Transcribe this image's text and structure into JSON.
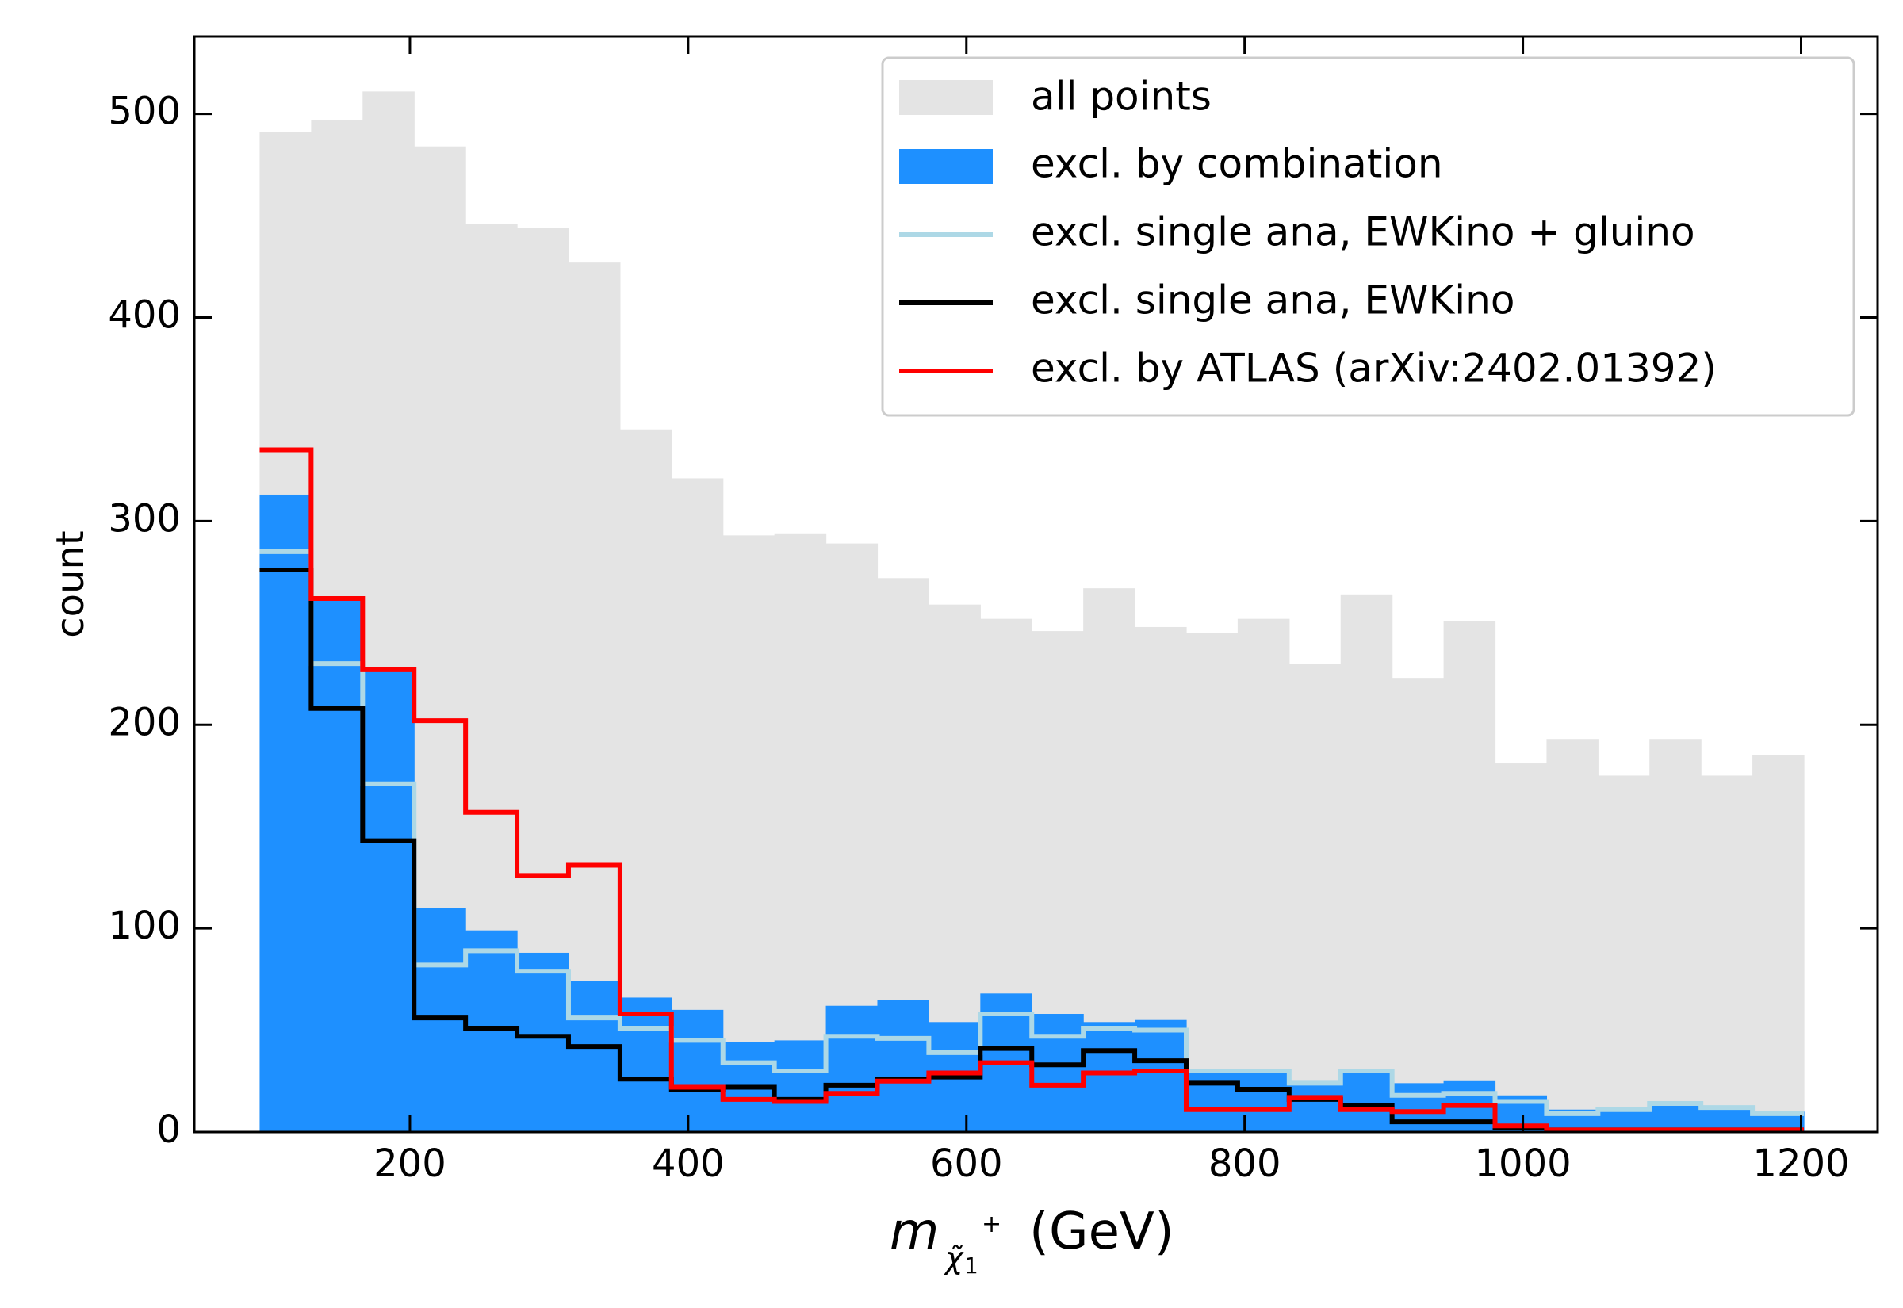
{
  "chart_data": {
    "type": "histogram",
    "title": "",
    "xlabel": {
      "symbol": "m",
      "sub_base": "χ̃",
      "sub_index": "1",
      "sup": "+",
      "unit": "(GeV)"
    },
    "ylabel": "count",
    "xlim": [
      45,
      1255
    ],
    "ylim": [
      0,
      538
    ],
    "x_ticks": [
      200,
      400,
      600,
      800,
      1000,
      1200
    ],
    "y_ticks": [
      0,
      100,
      200,
      300,
      400,
      500
    ],
    "bin_edges": [
      92,
      129,
      166,
      203,
      240,
      277,
      314,
      351,
      388,
      425,
      462,
      499,
      536,
      573,
      610,
      647,
      684,
      721,
      758,
      795,
      832,
      869,
      906,
      943,
      980,
      1017,
      1054,
      1091,
      1128,
      1165,
      1202
    ],
    "series": [
      {
        "name": "all points",
        "style": "filled",
        "color": "#e4e4e4",
        "values": [
          491,
          497,
          511,
          484,
          446,
          444,
          427,
          345,
          321,
          293,
          294,
          289,
          272,
          259,
          252,
          246,
          267,
          248,
          245,
          252,
          230,
          264,
          223,
          251,
          181,
          193,
          175,
          193,
          175,
          185
        ]
      },
      {
        "name": "excl. by combination",
        "style": "filled",
        "color": "#1e90ff",
        "values": [
          313,
          262,
          226,
          110,
          99,
          88,
          74,
          66,
          60,
          44,
          45,
          62,
          65,
          54,
          68,
          58,
          54,
          55,
          31,
          31,
          25,
          31,
          24,
          25,
          18,
          11,
          12,
          14,
          12,
          10
        ]
      },
      {
        "name": "excl. single ana, EWKino + gluino",
        "style": "step",
        "color": "#add8e6",
        "values": [
          285,
          230,
          171,
          82,
          89,
          79,
          56,
          51,
          45,
          34,
          30,
          47,
          46,
          39,
          58,
          47,
          51,
          50,
          30,
          30,
          24,
          30,
          18,
          19,
          15,
          9,
          11,
          14,
          12,
          9
        ]
      },
      {
        "name": "excl. single ana, EWKino",
        "style": "step",
        "color": "#000000",
        "values": [
          276,
          208,
          143,
          56,
          51,
          47,
          42,
          26,
          21,
          22,
          16,
          23,
          26,
          27,
          41,
          33,
          40,
          35,
          24,
          21,
          16,
          13,
          5,
          5,
          2,
          1,
          1,
          1,
          1,
          1
        ]
      },
      {
        "name": "excl. by ATLAS (arXiv:2402.01392)",
        "style": "step",
        "color": "#ff0000",
        "values": [
          335,
          262,
          227,
          202,
          157,
          126,
          131,
          58,
          22,
          16,
          15,
          19,
          25,
          29,
          34,
          23,
          29,
          30,
          11,
          11,
          17,
          11,
          10,
          13,
          3,
          1,
          1,
          1,
          1,
          1
        ]
      }
    ],
    "legend_placement": "top-right"
  }
}
